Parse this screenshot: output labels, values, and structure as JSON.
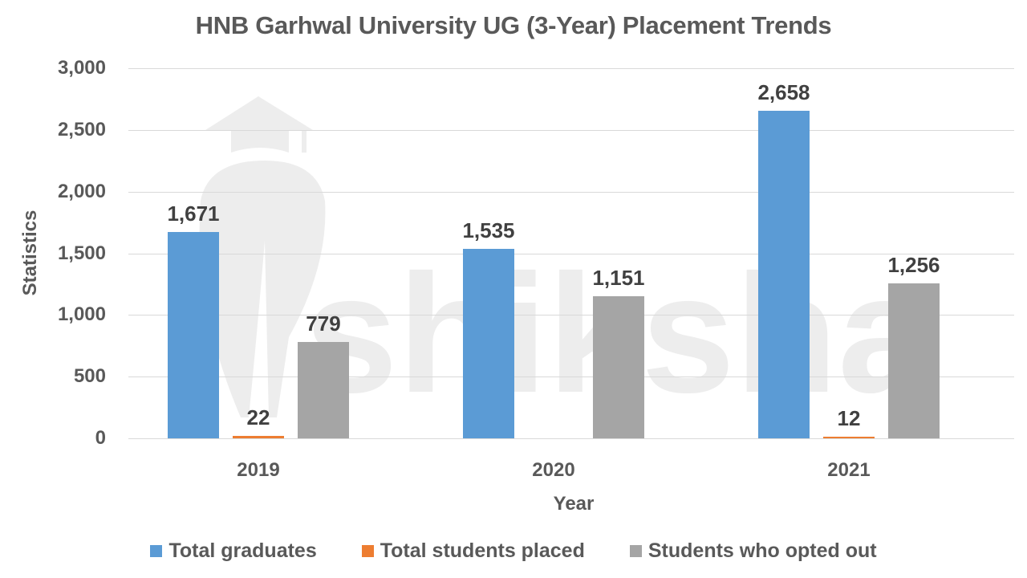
{
  "chart_data": {
    "type": "bar",
    "title": "HNB Garhwal University UG (3-Year) Placement Trends",
    "xlabel": "Year",
    "ylabel": "Statistics",
    "ylim": [
      0,
      3000
    ],
    "yticks": [
      "0",
      "500",
      "1,000",
      "1,500",
      "2,000",
      "2,500",
      "3,000"
    ],
    "grid": true,
    "legend_position": "bottom",
    "categories": [
      "2019",
      "2020",
      "2021"
    ],
    "series": [
      {
        "name": "Total graduates",
        "color": "#5b9bd5",
        "values": [
          1671,
          1535,
          2658
        ],
        "labels": [
          "1,671",
          "1,535",
          "2,658"
        ]
      },
      {
        "name": "Total students placed",
        "color": "#ed7d31",
        "values": [
          22,
          null,
          12
        ],
        "labels": [
          "22",
          "",
          "12"
        ]
      },
      {
        "name": "Students who opted out",
        "color": "#a5a5a5",
        "values": [
          779,
          1151,
          1256
        ],
        "labels": [
          "779",
          "1,151",
          "1,256"
        ]
      }
    ]
  },
  "watermark": {
    "text": "shiksha"
  }
}
